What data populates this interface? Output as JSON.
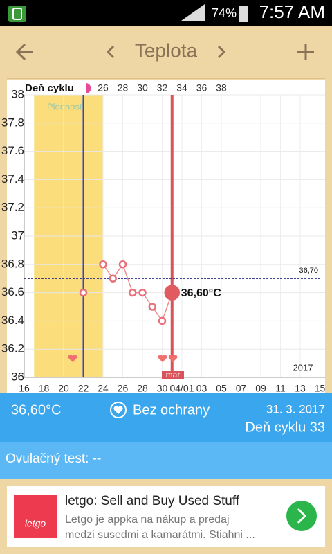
{
  "status_bar": {
    "battery": "74%",
    "time": "7:57 AM"
  },
  "toolbar": {
    "title": "Teplota"
  },
  "chart_data": {
    "type": "line",
    "categories": [
      "16",
      null,
      "18",
      null,
      "20",
      null,
      "22",
      null,
      "24",
      null,
      "26",
      null,
      "28",
      null,
      "30",
      null,
      "04/01",
      null,
      "03",
      null,
      "05",
      null,
      "07",
      null,
      "09",
      null,
      "11",
      null,
      "13",
      null,
      "15"
    ],
    "cycle_day_title": "Deň cyklu",
    "cycle_days": [
      null,
      null,
      null,
      null,
      null,
      null,
      null,
      null,
      26,
      null,
      28,
      null,
      30,
      null,
      32,
      null,
      34,
      null,
      36,
      null,
      38,
      null,
      null,
      null,
      null,
      null,
      null,
      null,
      null,
      null,
      null
    ],
    "values": [
      null,
      null,
      null,
      null,
      null,
      null,
      36.6,
      null,
      36.8,
      36.7,
      36.8,
      36.6,
      36.6,
      36.5,
      36.4,
      36.6,
      null,
      null,
      null,
      null,
      null,
      null,
      null,
      null,
      null,
      null,
      null,
      null,
      null,
      null,
      null
    ],
    "color": "#f08a8a",
    "ylim": [
      36,
      38
    ],
    "yticks": [
      36,
      36.2,
      36.4,
      36.6,
      36.8,
      37,
      37.2,
      37.4,
      37.6,
      37.8,
      38
    ],
    "grid": true,
    "reference_line": {
      "value": 36.7,
      "label": "36,70"
    },
    "selected_label": "36,60°C",
    "fertile_label": "Plodnosť",
    "month_label": "mar",
    "year_label": "2017"
  },
  "info": {
    "temperature": "36,60°C",
    "protection": "Bez ochrany",
    "date": "31. 3. 2017",
    "cycle_day": "Deň cyklu 33",
    "ovulation_test": "Ovulačný test: --"
  },
  "ad": {
    "title": "letgo: Sell and Buy Used Stuff",
    "body_line1": "Letgo je appka na nákup a predaj",
    "body_line2": "medzi susedmi a kamarátmi. Stiahni ...",
    "logo": "letgo"
  }
}
